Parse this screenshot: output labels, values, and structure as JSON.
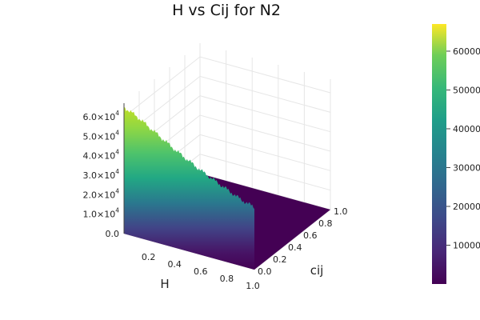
{
  "chart_data": {
    "type": "surface",
    "title": "H vs Cij for N2",
    "xlabel": "H",
    "ylabel": "cij",
    "zlabel": "",
    "x_range": [
      0.0,
      1.0
    ],
    "y_range": [
      0.0,
      1.0
    ],
    "z_range": [
      0,
      67000
    ],
    "x_ticks": [
      "0.2",
      "0.4",
      "0.6",
      "0.8",
      "1.0"
    ],
    "y_ticks": [
      "0.0",
      "0.2",
      "0.4",
      "0.6",
      "0.8",
      "1.0"
    ],
    "z_ticks": [
      {
        "base": "0.0",
        "exp": ""
      },
      {
        "base": "1.0×10",
        "exp": "4"
      },
      {
        "base": "2.0×10",
        "exp": "4"
      },
      {
        "base": "3.0×10",
        "exp": "4"
      },
      {
        "base": "4.0×10",
        "exp": "4"
      },
      {
        "base": "5.0×10",
        "exp": "4"
      },
      {
        "base": "6.0×10",
        "exp": "4"
      }
    ],
    "description": "Surface is ~zero everywhere except a ridge at cij ≈ 0 whose height falls from ~65000 at H=0 to ~32000 at H=1.",
    "ridge_at_cij_zero": {
      "H": [
        0.0,
        0.1,
        0.2,
        0.3,
        0.4,
        0.5,
        0.6,
        0.7,
        0.8,
        0.9,
        1.0
      ],
      "value": [
        65000,
        62000,
        58000,
        54000,
        50000,
        46500,
        43000,
        40000,
        37000,
        34000,
        32000
      ]
    },
    "colorbar": {
      "colormap": "viridis",
      "range": [
        0,
        67000
      ],
      "ticks": [
        "10000",
        "20000",
        "30000",
        "40000",
        "50000",
        "60000"
      ]
    },
    "colors": {
      "surface_floor": "#440154",
      "grid": "#e6e6e6",
      "axis": "#444444"
    }
  }
}
